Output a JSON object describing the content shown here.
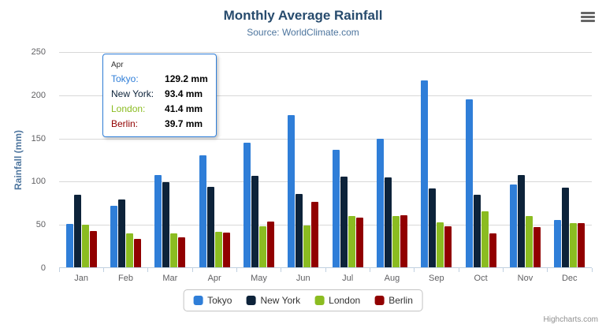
{
  "header": {
    "title": "Monthly Average Rainfall",
    "subtitle": "Source: WorldClimate.com"
  },
  "y_axis": {
    "title": "Rainfall (mm)"
  },
  "credits": "Highcharts.com",
  "menu_icon": "hamburger-icon",
  "tooltip": {
    "header": "Apr",
    "rows": [
      {
        "label": "Tokyo:",
        "value": "129.2 mm",
        "color": "#2f7ed8"
      },
      {
        "label": "New York:",
        "value": "93.4 mm",
        "color": "#0d233a"
      },
      {
        "label": "London:",
        "value": "41.4 mm",
        "color": "#8bbc21"
      },
      {
        "label": "Berlin:",
        "value": "39.7 mm",
        "color": "#910000"
      }
    ]
  },
  "chart_data": {
    "type": "bar",
    "title": "Monthly Average Rainfall",
    "subtitle": "Source: WorldClimate.com",
    "xlabel": "",
    "ylabel": "Rainfall (mm)",
    "ylim": [
      0,
      250
    ],
    "ytick_interval": 50,
    "grid": true,
    "legend_position": "bottom",
    "categories": [
      "Jan",
      "Feb",
      "Mar",
      "Apr",
      "May",
      "Jun",
      "Jul",
      "Aug",
      "Sep",
      "Oct",
      "Nov",
      "Dec"
    ],
    "series": [
      {
        "name": "Tokyo",
        "color": "#2f7ed8",
        "values": [
          49.9,
          71.5,
          106.4,
          129.2,
          144.0,
          176.0,
          135.6,
          148.5,
          216.4,
          194.1,
          95.6,
          54.4
        ]
      },
      {
        "name": "New York",
        "color": "#0d233a",
        "values": [
          83.6,
          78.8,
          98.5,
          93.4,
          106.0,
          84.5,
          105.0,
          104.3,
          91.2,
          83.5,
          106.6,
          92.3
        ]
      },
      {
        "name": "London",
        "color": "#8bbc21",
        "values": [
          48.9,
          38.8,
          39.3,
          41.4,
          47.0,
          48.3,
          59.0,
          59.6,
          52.4,
          65.2,
          59.3,
          51.2
        ]
      },
      {
        "name": "Berlin",
        "color": "#910000",
        "values": [
          42.4,
          33.2,
          34.5,
          39.7,
          52.6,
          75.5,
          57.4,
          60.4,
          47.6,
          39.1,
          46.8,
          51.1
        ]
      }
    ]
  }
}
